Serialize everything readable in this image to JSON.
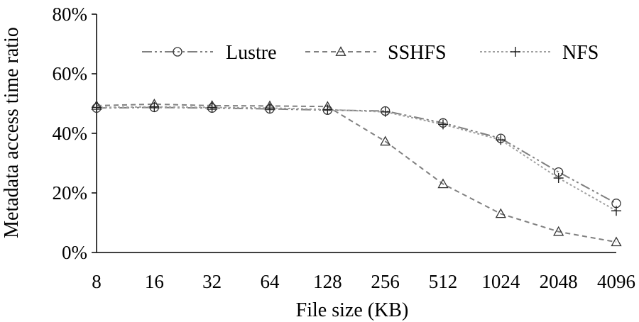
{
  "chart_data": {
    "type": "line",
    "categories": [
      "8",
      "16",
      "32",
      "64",
      "128",
      "256",
      "512",
      "1024",
      "2048",
      "4096"
    ],
    "series": [
      {
        "name": "Lustre",
        "values": [
          48.5,
          48.7,
          48.5,
          48.2,
          47.8,
          47.5,
          43.5,
          38.3,
          27.0,
          16.5
        ],
        "marker": "circle",
        "dash": "14,4,3,4,3,4",
        "color": "#808080"
      },
      {
        "name": "SSHFS",
        "values": [
          49.3,
          49.8,
          49.3,
          49.2,
          49.0,
          37.3,
          23.0,
          13.0,
          7.0,
          3.5
        ],
        "marker": "triangle",
        "dash": "7,5",
        "color": "#808080"
      },
      {
        "name": "NFS",
        "values": [
          48.7,
          48.9,
          48.7,
          48.5,
          48.0,
          47.2,
          43.0,
          37.8,
          25.0,
          14.0
        ],
        "marker": "plus",
        "dash": "3,3",
        "color": "#a0a0a0"
      }
    ],
    "xlabel": "File size (KB)",
    "ylabel": "Metadata access time ratio",
    "ylim": [
      0,
      80
    ],
    "yticks": [
      "0%",
      "20%",
      "40%",
      "60%",
      "80%"
    ],
    "grid": false,
    "legend_position": "top"
  }
}
